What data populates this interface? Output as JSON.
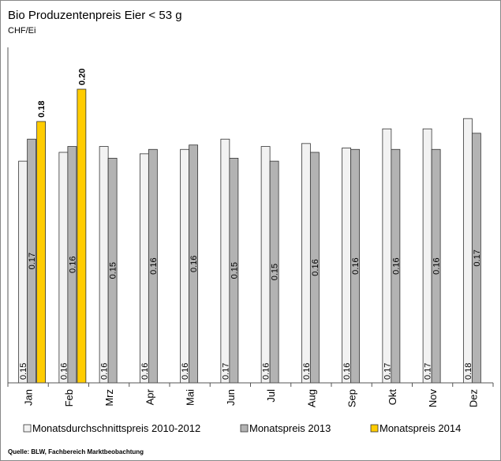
{
  "chart_data": {
    "type": "bar",
    "title": "Bio Produzentenpreis Eier < 53 g",
    "subtitle": "CHF/Ei",
    "source": "Quelle: BLW, Fachbereich Marktbeobachtung",
    "categories": [
      "Jan",
      "Feb",
      "Mrz",
      "Apr",
      "Mai",
      "Jun",
      "Jul",
      "Aug",
      "Sep",
      "Okt",
      "Nov",
      "Dez"
    ],
    "series": [
      {
        "name": "Monatsdurchschnittspreis 2010-2012",
        "color": "#f2f2f2",
        "values": [
          0.151,
          0.157,
          0.161,
          0.156,
          0.159,
          0.166,
          0.161,
          0.163,
          0.16,
          0.173,
          0.173,
          0.18
        ],
        "value_labels": [
          "0.15",
          "0.16",
          "0.16",
          "0.16",
          "0.16",
          "0.17",
          "0.16",
          "0.16",
          "0.16",
          "0.17",
          "0.17",
          "0.18"
        ]
      },
      {
        "name": "Monatspreis 2013",
        "color": "#b3b3b3",
        "values": [
          0.166,
          0.161,
          0.153,
          0.159,
          0.162,
          0.153,
          0.151,
          0.157,
          0.159,
          0.159,
          0.159,
          0.17
        ],
        "value_labels": [
          "0.17",
          "0.16",
          "0.15",
          "0.16",
          "0.16",
          "0.15",
          "0.15",
          "0.16",
          "0.16",
          "0.16",
          "0.16",
          "0.17"
        ]
      },
      {
        "name": "Monatspreis 2014",
        "color": "#ffcc00",
        "values": [
          0.178,
          0.2,
          null,
          null,
          null,
          null,
          null,
          null,
          null,
          null,
          null,
          null
        ],
        "value_labels": [
          "0.18",
          "0.20",
          null,
          null,
          null,
          null,
          null,
          null,
          null,
          null,
          null,
          null
        ]
      }
    ]
  }
}
